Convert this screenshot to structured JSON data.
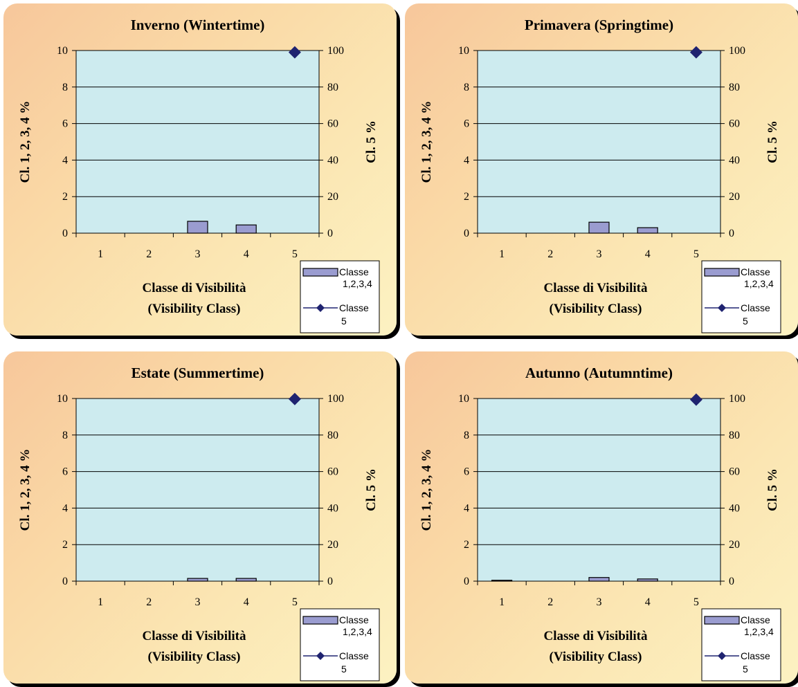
{
  "colors": {
    "plot_bg": "#cdebef",
    "bar_fill": "#9a9cd0",
    "marker": "#1f2370",
    "axis": "#000000"
  },
  "chart_data": [
    {
      "type": "bar",
      "title": "Inverno (Wintertime)",
      "categories": [
        "1",
        "2",
        "3",
        "4",
        "5"
      ],
      "xlabel_line1": "Classe di Visibilità",
      "xlabel_line2": "(Visibility Class)",
      "ylabel": "Cl. 1, 2, 3, 4 %",
      "y2label": "Cl. 5 %",
      "ylim": [
        0,
        10
      ],
      "y2lim": [
        0,
        100
      ],
      "yticks": [
        "0",
        "2",
        "4",
        "6",
        "8",
        "10"
      ],
      "y2ticks": [
        "0",
        "20",
        "40",
        "60",
        "80",
        "100"
      ],
      "grid": true,
      "legend_position": "bottom-right",
      "series": [
        {
          "name": "Classe 1,2,3,4",
          "name_line1": "Classe",
          "name_line2": "1,2,3,4",
          "type": "bar",
          "axis": "left",
          "values": [
            0,
            0,
            0.65,
            0.45,
            null
          ]
        },
        {
          "name": "Classe 5",
          "name_line1": "Classe",
          "name_line2": "5",
          "type": "scatter",
          "axis": "right",
          "values": [
            null,
            null,
            null,
            null,
            99
          ]
        }
      ]
    },
    {
      "type": "bar",
      "title": "Primavera (Springtime)",
      "categories": [
        "1",
        "2",
        "3",
        "4",
        "5"
      ],
      "xlabel_line1": "Classe di Visibilità",
      "xlabel_line2": "(Visibility Class)",
      "ylabel": "Cl. 1, 2, 3, 4 %",
      "y2label": "Cl. 5 %",
      "ylim": [
        0,
        10
      ],
      "y2lim": [
        0,
        100
      ],
      "yticks": [
        "0",
        "2",
        "4",
        "6",
        "8",
        "10"
      ],
      "y2ticks": [
        "0",
        "20",
        "40",
        "60",
        "80",
        "100"
      ],
      "grid": true,
      "legend_position": "bottom-right",
      "series": [
        {
          "name": "Classe 1,2,3,4",
          "name_line1": "Classe",
          "name_line2": "1,2,3,4",
          "type": "bar",
          "axis": "left",
          "values": [
            0,
            0,
            0.6,
            0.3,
            null
          ]
        },
        {
          "name": "Classe 5",
          "name_line1": "Classe",
          "name_line2": "5",
          "type": "scatter",
          "axis": "right",
          "values": [
            null,
            null,
            null,
            null,
            99
          ]
        }
      ]
    },
    {
      "type": "bar",
      "title": "Estate (Summertime)",
      "categories": [
        "1",
        "2",
        "3",
        "4",
        "5"
      ],
      "xlabel_line1": "Classe di Visibilità",
      "xlabel_line2": "(Visibility Class)",
      "ylabel": "Cl. 1, 2, 3, 4 %",
      "y2label": "Cl. 5 %",
      "ylim": [
        0,
        10
      ],
      "y2lim": [
        0,
        100
      ],
      "yticks": [
        "0",
        "2",
        "4",
        "6",
        "8",
        "10"
      ],
      "y2ticks": [
        "0",
        "20",
        "40",
        "60",
        "80",
        "100"
      ],
      "grid": true,
      "legend_position": "bottom-right",
      "series": [
        {
          "name": "Classe 1,2,3,4",
          "name_line1": "Classe",
          "name_line2": "1,2,3,4",
          "type": "bar",
          "axis": "left",
          "values": [
            0,
            0,
            0.15,
            0.15,
            null
          ]
        },
        {
          "name": "Classe 5",
          "name_line1": "Classe",
          "name_line2": "5",
          "type": "scatter",
          "axis": "right",
          "values": [
            null,
            null,
            null,
            null,
            99.7
          ]
        }
      ]
    },
    {
      "type": "bar",
      "title": "Autunno (Autumntime)",
      "categories": [
        "1",
        "2",
        "3",
        "4",
        "5"
      ],
      "xlabel_line1": "Classe di Visibilità",
      "xlabel_line2": "(Visibility Class)",
      "ylabel": "Cl. 1, 2, 3, 4 %",
      "y2label": "Cl. 5 %",
      "ylim": [
        0,
        10
      ],
      "y2lim": [
        0,
        100
      ],
      "yticks": [
        "0",
        "2",
        "4",
        "6",
        "8",
        "10"
      ],
      "y2ticks": [
        "0",
        "20",
        "40",
        "60",
        "80",
        "100"
      ],
      "grid": true,
      "legend_position": "bottom-right",
      "series": [
        {
          "name": "Classe 1,2,3,4",
          "name_line1": "Classe",
          "name_line2": "1,2,3,4",
          "type": "bar",
          "axis": "left",
          "values": [
            0.05,
            0,
            0.2,
            0.12,
            null
          ]
        },
        {
          "name": "Classe 5",
          "name_line1": "Classe",
          "name_line2": "5",
          "type": "scatter",
          "axis": "right",
          "values": [
            null,
            null,
            null,
            null,
            99.4
          ]
        }
      ]
    }
  ]
}
